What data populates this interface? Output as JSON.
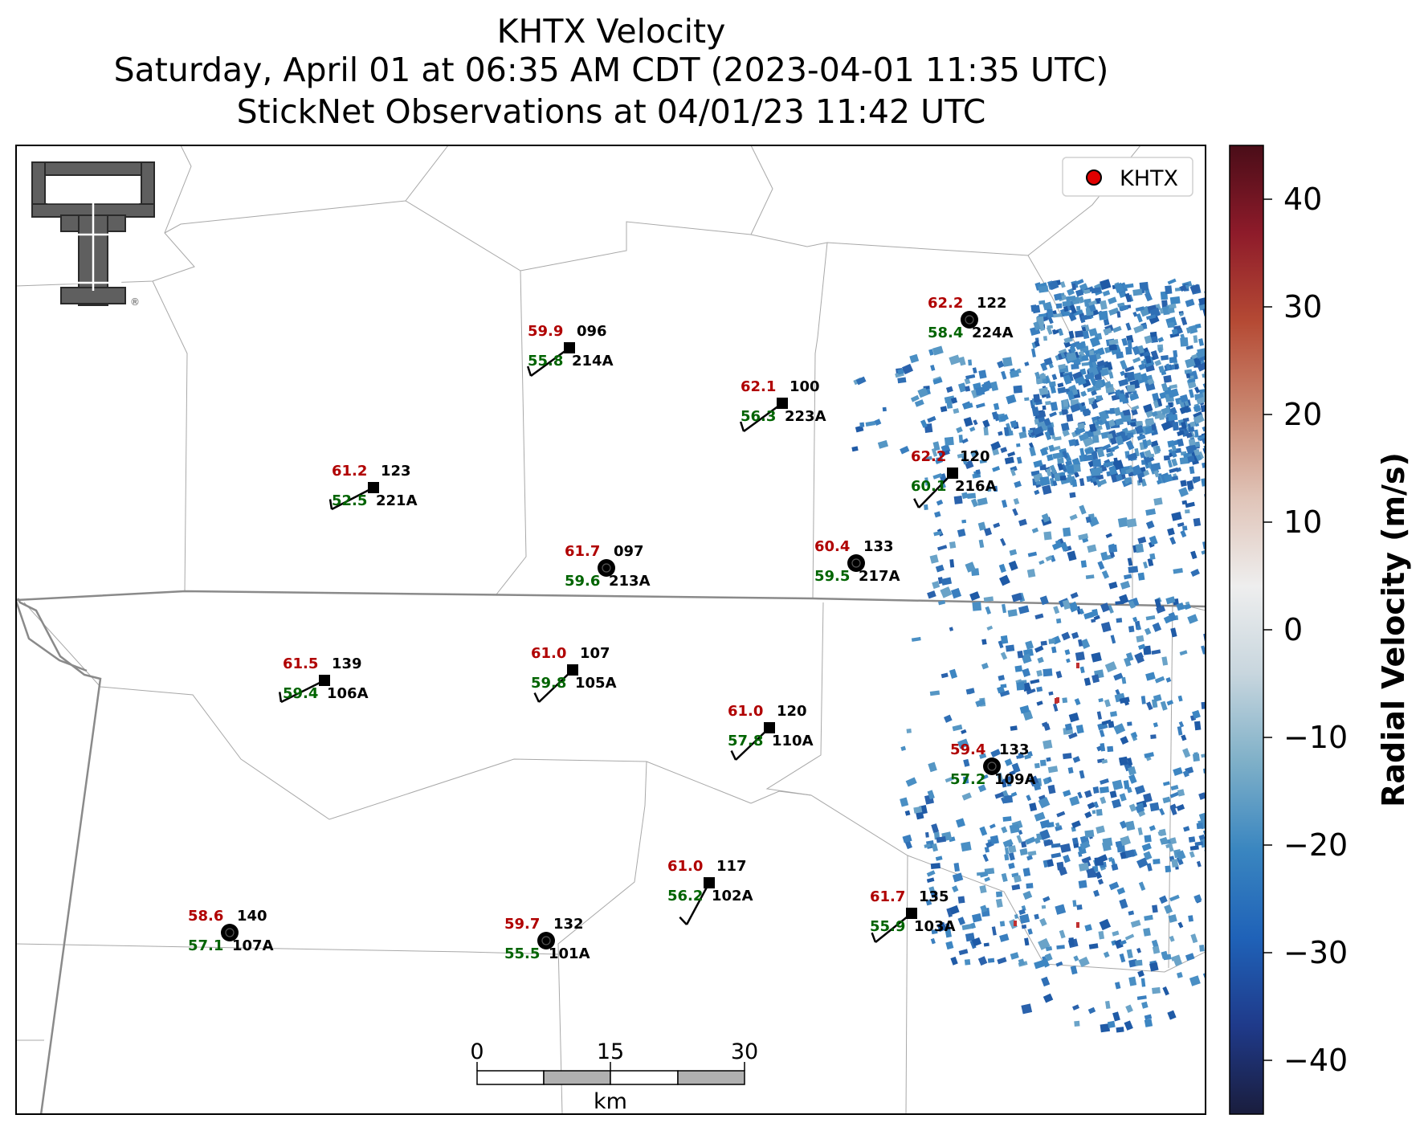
{
  "title": {
    "line1": "KHTX Velocity",
    "line2": "Saturday, April 01 at 06:35 AM CDT (2023-04-01 11:35 UTC)",
    "line3": "StickNet Observations at 04/01/23 11:42 UTC"
  },
  "legend": {
    "label": "KHTX",
    "marker_color": "#e00000"
  },
  "colorbar": {
    "label": "Radial Velocity (m/s)",
    "min": -45,
    "max": 45,
    "ticks": [
      "40",
      "30",
      "20",
      "10",
      "0",
      "−10",
      "−20",
      "−30",
      "−40"
    ],
    "tick_values": [
      40,
      30,
      20,
      10,
      0,
      -10,
      -20,
      -30,
      -40
    ],
    "colors": [
      "#1a1d3d",
      "#1f3a8a",
      "#1f62b8",
      "#3a86c0",
      "#7fb0c8",
      "#c8d6de",
      "#eeeeee",
      "#e0c4b8",
      "#c98770",
      "#b54a34",
      "#8e1b2a",
      "#4a0d18"
    ]
  },
  "logo": {
    "name": "Texas Tech Double T",
    "mark": "®"
  },
  "scale_bar": {
    "ticks": [
      "0",
      "15",
      "30"
    ],
    "unit": "km"
  },
  "stations": [
    {
      "id": "214A",
      "num": "096",
      "t": "59.9",
      "td": "55.8",
      "type": "barb"
    },
    {
      "id": "223A",
      "num": "100",
      "t": "62.1",
      "td": "56.3",
      "type": "barb"
    },
    {
      "id": "224A",
      "num": "122",
      "t": "62.2",
      "td": "58.4",
      "type": "calm"
    },
    {
      "id": "216A",
      "num": "120",
      "t": "62.2",
      "td": "60.1",
      "type": "barb"
    },
    {
      "id": "221A",
      "num": "123",
      "t": "61.2",
      "td": "52.5",
      "type": "barb"
    },
    {
      "id": "213A",
      "num": "097",
      "t": "61.7",
      "td": "59.6",
      "type": "calm"
    },
    {
      "id": "217A",
      "num": "133",
      "t": "60.4",
      "td": "59.5",
      "type": "calm"
    },
    {
      "id": "106A",
      "num": "139",
      "t": "61.5",
      "td": "59.4",
      "type": "barb"
    },
    {
      "id": "105A",
      "num": "107",
      "t": "61.0",
      "td": "59.8",
      "type": "barb"
    },
    {
      "id": "110A",
      "num": "120",
      "t": "61.0",
      "td": "57.8",
      "type": "barb"
    },
    {
      "id": "109A",
      "num": "133",
      "t": "59.4",
      "td": "57.2",
      "type": "calm"
    },
    {
      "id": "102A",
      "num": "117",
      "t": "61.0",
      "td": "56.2",
      "type": "barb"
    },
    {
      "id": "103A",
      "num": "135",
      "t": "61.7",
      "td": "55.9",
      "type": "barb"
    },
    {
      "id": "107A",
      "num": "140",
      "t": "58.6",
      "td": "57.1",
      "type": "calm"
    },
    {
      "id": "101A",
      "num": "132",
      "t": "59.7",
      "td": "55.5",
      "type": "calm"
    }
  ]
}
